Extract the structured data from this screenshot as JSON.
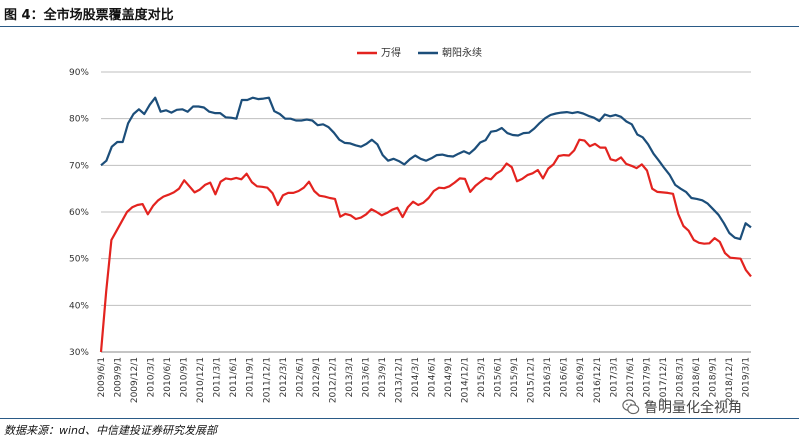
{
  "figure": {
    "title": "图 4：全市场股票覆盖度对比",
    "source": "数据来源：wind、中信建投证券研究发展部",
    "watermark": "鲁明量化全视角",
    "watermark_icon": "wechat-icon"
  },
  "colors": {
    "wind": "#e3231f",
    "chaoyang": "#1c4e7a",
    "grid": "#bfbfbf"
  },
  "chart_data": {
    "type": "line",
    "title": "",
    "xlabel": "",
    "ylabel": "",
    "ylim": [
      30,
      90
    ],
    "yticks": [
      "30%",
      "40%",
      "50%",
      "60%",
      "70%",
      "80%",
      "90%"
    ],
    "grid": true,
    "legend_position": "top",
    "x_tick_labels": [
      "2009/6/1",
      "2009/9/1",
      "2009/12/1",
      "2010/3/1",
      "2010/6/1",
      "2010/9/1",
      "2010/12/1",
      "2011/3/1",
      "2011/6/1",
      "2011/9/1",
      "2011/12/1",
      "2012/3/1",
      "2012/6/1",
      "2012/9/1",
      "2012/12/1",
      "2013/3/1",
      "2013/6/1",
      "2013/9/1",
      "2013/12/1",
      "2014/3/1",
      "2014/6/1",
      "2014/9/1",
      "2014/12/1",
      "2015/3/1",
      "2015/6/1",
      "2015/9/1",
      "2015/12/1",
      "2016/3/1",
      "2016/6/1",
      "2016/9/1",
      "2016/12/1",
      "2017/3/1",
      "2017/6/1",
      "2017/9/1",
      "2017/12/1",
      "2018/3/1",
      "2018/6/1",
      "2018/9/1",
      "2018/12/1",
      "2019/3/1"
    ],
    "x_start": "2009/6",
    "x_end": "2019/4",
    "series": [
      {
        "name": "万得",
        "values": [
          30,
          43,
          54,
          56,
          58,
          60,
          61,
          61.5,
          61.7,
          59.5,
          61.3,
          62.5,
          63.3,
          63.7,
          64.2,
          65,
          66.8,
          65.5,
          64.2,
          64.8,
          65.8,
          66.3,
          63.8,
          66.5,
          67.2,
          67,
          67.3,
          67,
          68.2,
          66.4,
          65.5,
          65.4,
          65.2,
          64,
          61.5,
          63.6,
          64.1,
          64.1,
          64.5,
          65.2,
          66.5,
          64.5,
          63.5,
          63.3,
          63,
          62.8,
          59,
          59.6,
          59.3,
          58.5,
          58.8,
          59.5,
          60.6,
          60,
          59.3,
          59.8,
          60.5,
          60.9,
          58.9,
          61,
          62.2,
          61.5,
          62,
          63,
          64.5,
          65.2,
          65.1,
          65.5,
          66.3,
          67.2,
          67.1,
          64.3,
          65.6,
          66.5,
          67.3,
          67,
          68.2,
          68.9,
          70.4,
          69.6,
          66.6,
          67.1,
          67.9,
          68.3,
          69,
          67.2,
          69.3,
          70.2,
          72,
          72.2,
          72.1,
          73.2,
          75.5,
          75.3,
          74.1,
          74.6,
          73.8,
          73.8,
          71.3,
          71,
          71.7,
          70.3,
          69.9,
          69.4,
          70.2,
          68.9,
          65,
          64.3,
          64.2,
          64.1,
          63.9,
          59.6,
          57,
          56,
          54,
          53.4,
          53.2,
          53.3,
          54.4,
          53.6,
          51.2,
          50.2,
          50.1,
          50,
          47.6,
          46.2
        ]
      },
      {
        "name": "朝阳永续",
        "values": [
          70,
          71,
          74,
          75,
          75,
          79,
          81,
          82,
          81,
          83,
          84.5,
          81.5,
          81.8,
          81.3,
          81.9,
          82,
          81.5,
          82.6,
          82.6,
          82.4,
          81.5,
          81.2,
          81.2,
          80.3,
          80.2,
          80,
          84,
          84,
          84.5,
          84.2,
          84.3,
          84.5,
          81.6,
          81,
          80,
          80,
          79.6,
          79.6,
          79.8,
          79.6,
          78.6,
          78.8,
          78.2,
          77,
          75.5,
          74.8,
          74.7,
          74.3,
          74,
          74.6,
          75.5,
          74.5,
          72.2,
          71,
          71.4,
          70.9,
          70.2,
          71.3,
          72.1,
          71.4,
          71,
          71.5,
          72.2,
          72.3,
          72,
          71.9,
          72.5,
          73,
          72.5,
          73.5,
          74.9,
          75.4,
          77.2,
          77.4,
          78,
          76.9,
          76.5,
          76.4,
          76.9,
          77,
          77.9,
          79.1,
          80.1,
          80.8,
          81.1,
          81.3,
          81.4,
          81.2,
          81.4,
          81.1,
          80.6,
          80.2,
          79.5,
          80.9,
          80.5,
          80.8,
          80.4,
          79.4,
          78.8,
          76.6,
          76,
          74.5,
          72.5,
          71,
          69.4,
          67.9,
          65.8,
          65,
          64.3,
          63,
          62.8,
          62.5,
          61.8,
          60.6,
          59.4,
          57.6,
          55.5,
          54.5,
          54.2,
          57.6,
          56.7
        ]
      }
    ]
  }
}
